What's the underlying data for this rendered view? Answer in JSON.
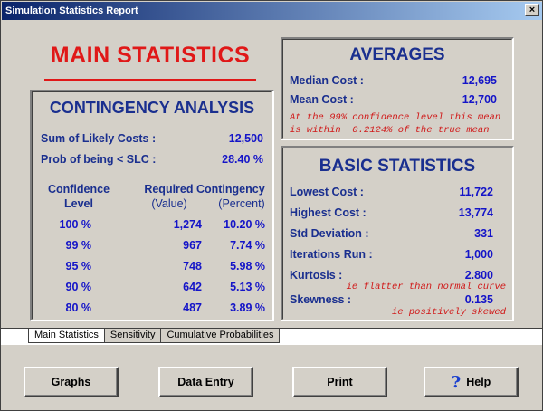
{
  "window": {
    "title": "Simulation Statistics Report",
    "close_glyph": "×"
  },
  "main_title": "MAIN  STATISTICS",
  "contingency": {
    "heading": "CONTINGENCY ANALYSIS",
    "sum_label": "Sum of Likely Costs :",
    "sum_value": "12,500",
    "prob_label": "Prob of being < SLC :",
    "prob_value": "28.40 %",
    "col_confidence_1": "Confidence",
    "col_confidence_2": "Level",
    "col_required": "Required Contingency",
    "col_value": "(Value)",
    "col_percent": "(Percent)",
    "rows": [
      {
        "level": "100 %",
        "value": "1,274",
        "percent": "10.20 %"
      },
      {
        "level": "99 %",
        "value": "967",
        "percent": "7.74 %"
      },
      {
        "level": "95 %",
        "value": "748",
        "percent": "5.98 %"
      },
      {
        "level": "90 %",
        "value": "642",
        "percent": "5.13 %"
      },
      {
        "level": "80 %",
        "value": "487",
        "percent": "3.89 %"
      }
    ]
  },
  "averages": {
    "heading": "AVERAGES",
    "median_label": "Median Cost :",
    "median_value": "12,695",
    "mean_label": "Mean Cost :",
    "mean_value": "12,700",
    "note_1": "At the 99% confidence level this mean",
    "note_2": "is within  0.2124% of the true mean"
  },
  "basic": {
    "heading": "BASIC STATISTICS",
    "lowest_label": "Lowest Cost :",
    "lowest_value": "11,722",
    "highest_label": "Highest Cost :",
    "highest_value": "13,774",
    "std_label": "Std Deviation :",
    "std_value": "331",
    "iter_label": "Iterations Run :",
    "iter_value": "1,000",
    "kurt_label": "Kurtosis :",
    "kurt_value": "2.800",
    "kurt_note": "ie flatter than normal curve",
    "skew_label": "Skewness :",
    "skew_value": "0.135",
    "skew_note": "ie positively skewed"
  },
  "tabs": [
    "Main Statistics",
    "Sensitivity",
    "Cumulative Probabilities"
  ],
  "buttons": {
    "graphs": "Graphs",
    "data_entry": "Data Entry",
    "print": "Print",
    "help": "Help",
    "help_icon": "?"
  },
  "colors": {
    "heading": "#1a2f8f",
    "value": "#1414c8",
    "accent_red": "#e01818"
  }
}
